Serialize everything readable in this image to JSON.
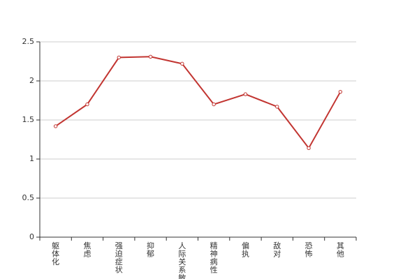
{
  "chart_data": {
    "type": "line",
    "categories": [
      "躯体化",
      "焦虑",
      "强迫症状",
      "抑郁",
      "人际关系敏感",
      "精神病性",
      "偏执",
      "敌对",
      "恐怖",
      "其他"
    ],
    "series": [
      {
        "color": "#c23531",
        "values": [
          1.42,
          1.7,
          2.3,
          2.31,
          2.22,
          1.7,
          1.83,
          1.67,
          1.14,
          1.86
        ]
      }
    ],
    "ylim": [
      0,
      2.5
    ],
    "yticks": [
      0,
      0.5,
      1,
      1.5,
      2,
      2.5
    ],
    "grid": true
  }
}
